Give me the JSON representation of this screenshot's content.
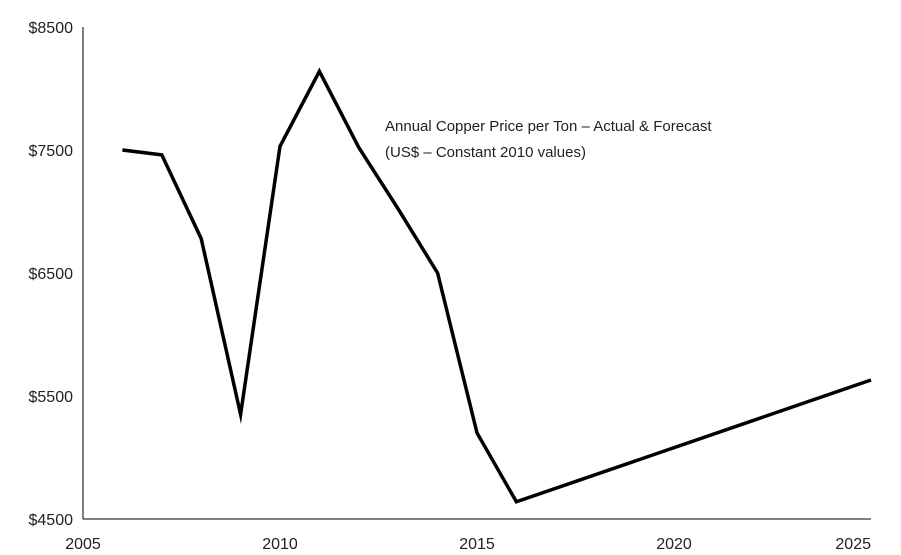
{
  "chart_data": {
    "type": "line",
    "title": "",
    "xlabel": "",
    "ylabel": "",
    "annotation": {
      "line1": "Annual Copper Price per Ton – Actual & Forecast",
      "line2": "(US$ – Constant 2010 values)"
    },
    "xlim": [
      2005,
      2025
    ],
    "ylim": [
      4500,
      8500
    ],
    "x_ticks": [
      2005,
      2010,
      2015,
      2020,
      2025
    ],
    "x_tick_labels": [
      "2005",
      "2010",
      "2015",
      "2020",
      "2025"
    ],
    "y_ticks": [
      4500,
      5500,
      6500,
      7500,
      8500
    ],
    "y_tick_labels": [
      "$4500",
      "$5500",
      "$6500",
      "$7500",
      "$8500"
    ],
    "grid": false,
    "legend": "none",
    "line_color": "#000000",
    "series": [
      {
        "x": [
          2006,
          2007,
          2008,
          2009,
          2010,
          2011,
          2012,
          2013,
          2014,
          2015,
          2016,
          2025
        ],
        "values": [
          7500,
          7460,
          6780,
          5350,
          7530,
          8140,
          7520,
          7020,
          6500,
          5200,
          4640,
          5630
        ]
      }
    ]
  }
}
